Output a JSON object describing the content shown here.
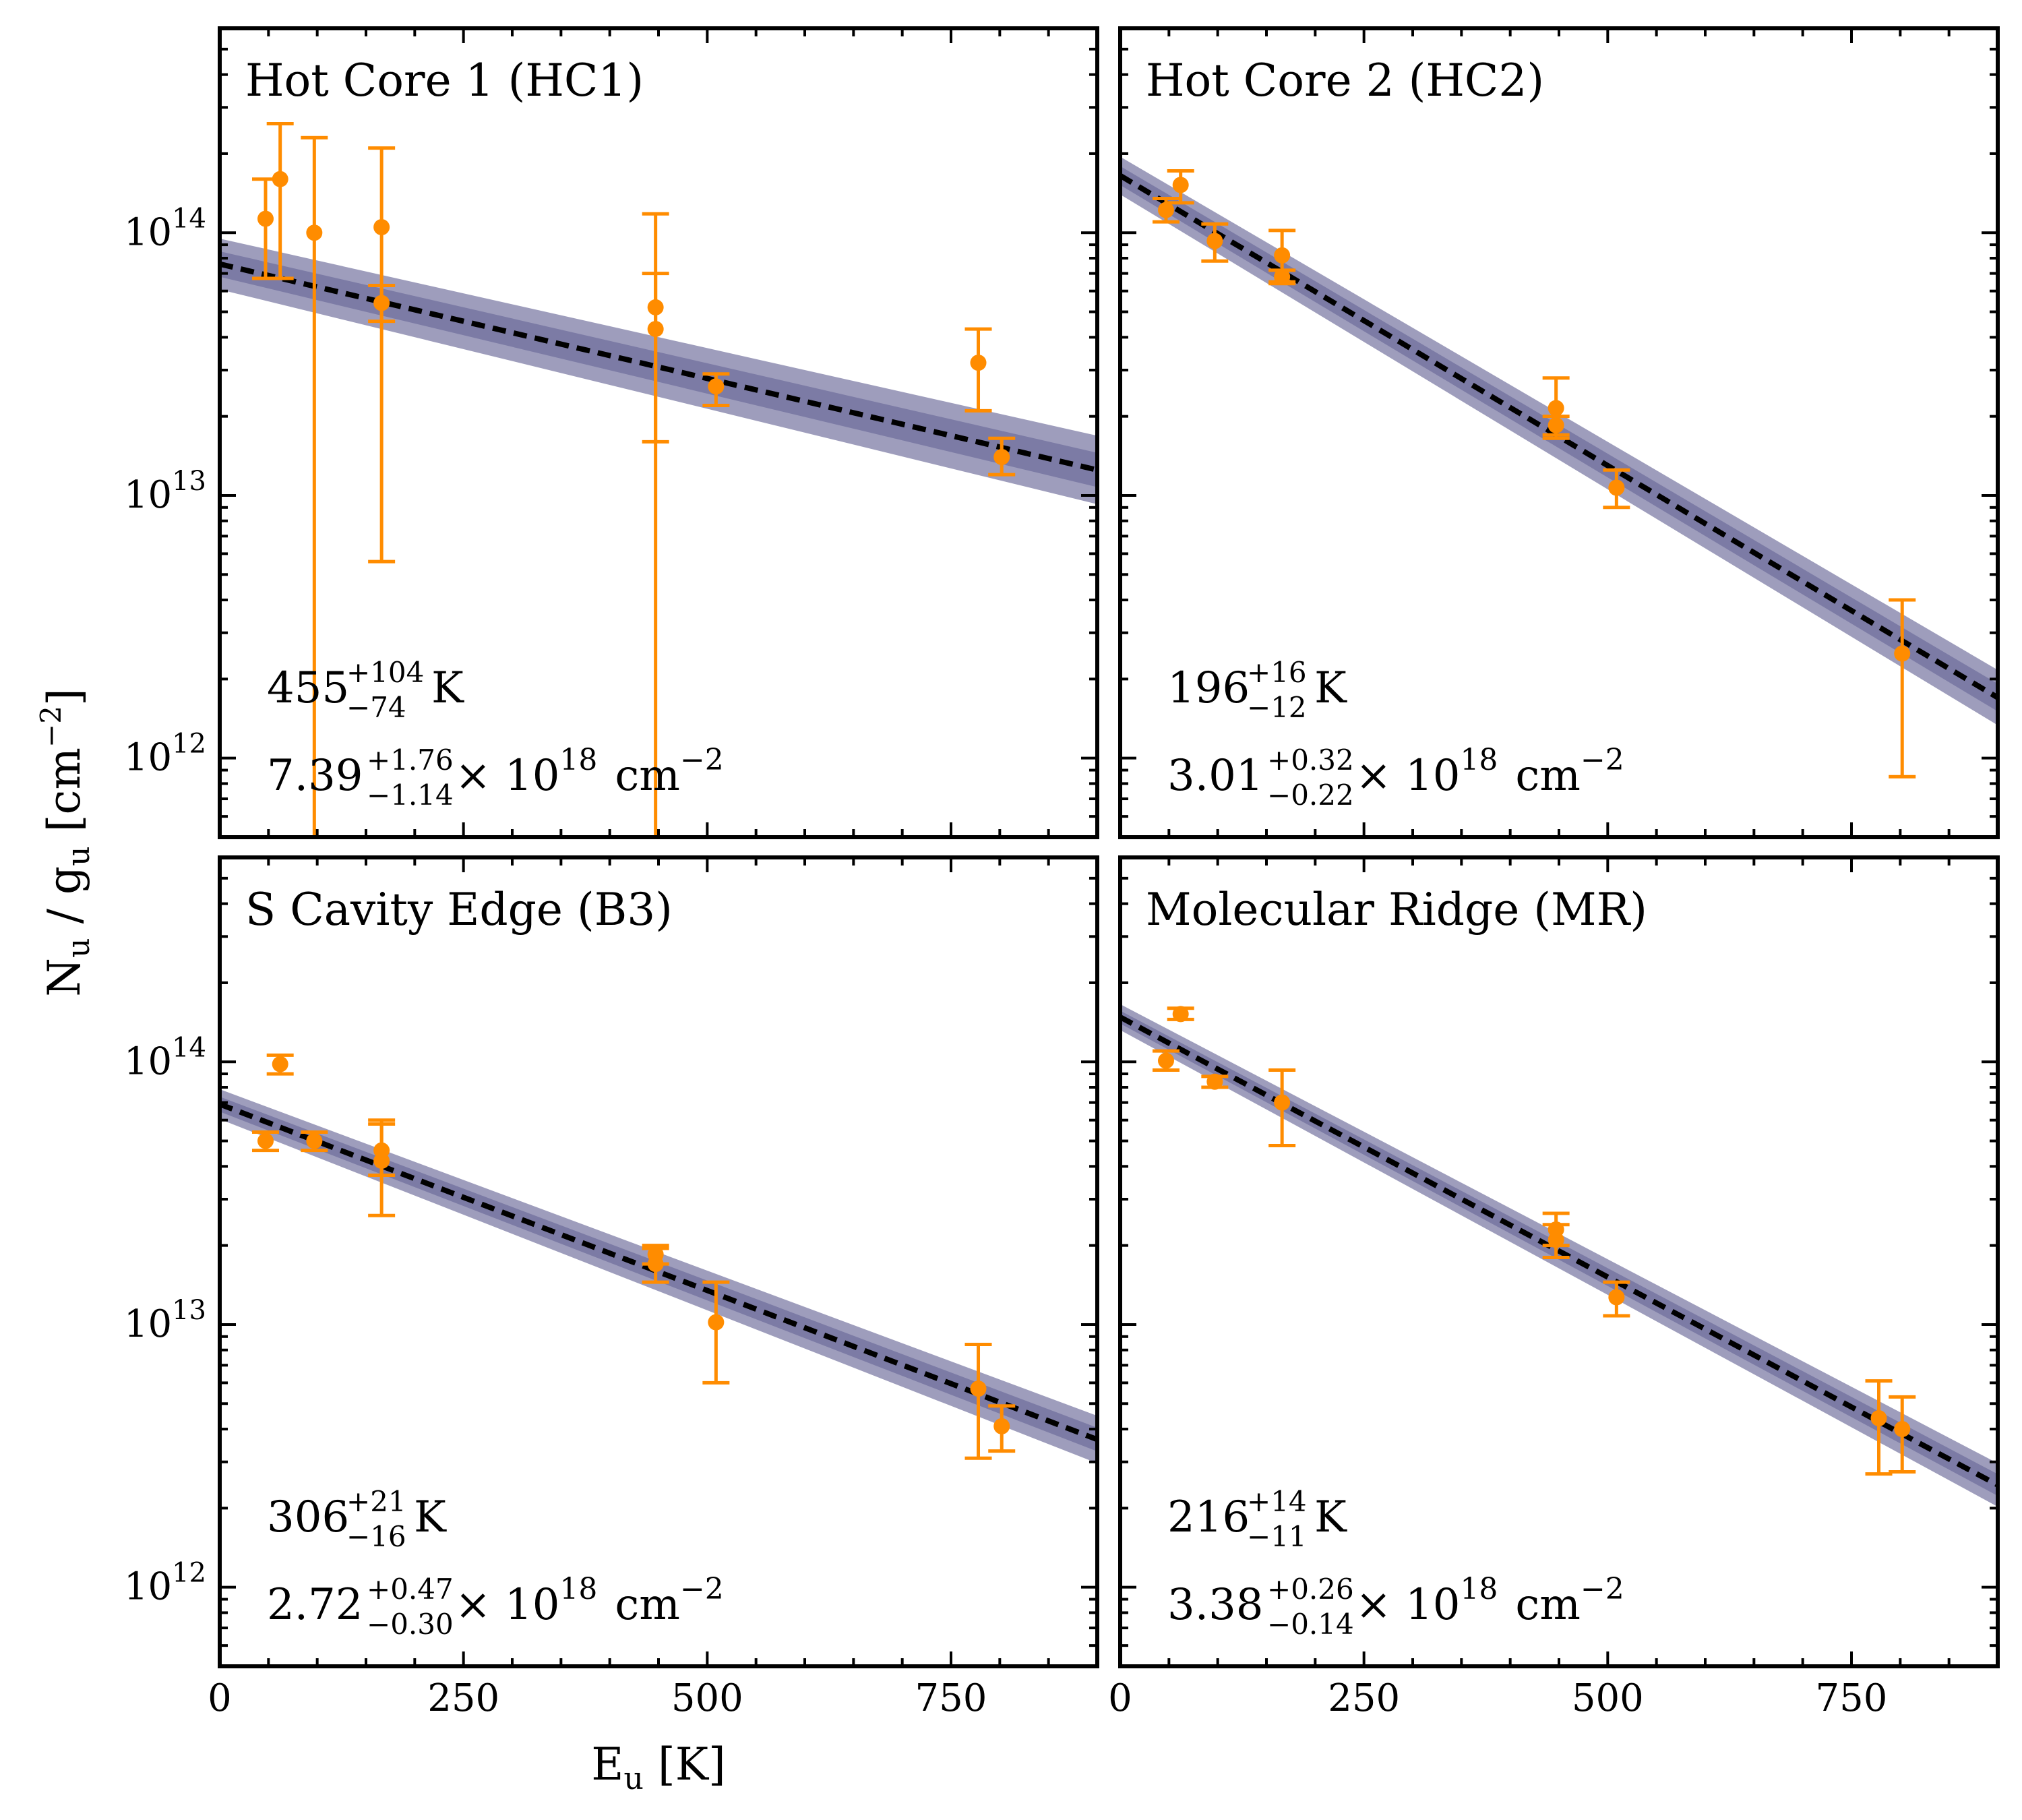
{
  "chart_data": {
    "type": "scatter",
    "xlabel": "E",
    "xlabel_sub": "u",
    "xlabel_unit": "[K]",
    "ylabel_parts": [
      "N",
      "u",
      " / g",
      "u",
      " [cm",
      "−2",
      "]"
    ],
    "xlim": [
      0,
      900
    ],
    "ylim": [
      500000000000.0,
      600000000000000.0
    ],
    "yscale": "log",
    "x_ticks": [
      0,
      250,
      500,
      750
    ],
    "x_tick_labels": [
      "0",
      "250",
      "500",
      "750"
    ],
    "y_ticks": [
      1000000000000.0,
      10000000000000.0,
      100000000000000.0
    ],
    "y_tick_labels": [
      {
        "base": "10",
        "exp": "12"
      },
      {
        "base": "10",
        "exp": "13"
      },
      {
        "base": "10",
        "exp": "14"
      }
    ],
    "colors": {
      "points": "#ff8c00",
      "fit": "#000000",
      "band": "#3d3b7a"
    },
    "panels": [
      {
        "title": "Hot Core 1 (HC1)",
        "temperature": {
          "value": "455",
          "plus": "+104",
          "minus": "−74",
          "unit": "K"
        },
        "column_density": {
          "value": "7.39",
          "plus": "+1.76",
          "minus": "−1.14",
          "times": "× 10",
          "exp": "18",
          "unit": "cm",
          "unit_exp": "−2"
        },
        "fit": {
          "y0": 76000000000000.0,
          "y900": 12500000000000.0
        },
        "band_factor": 1.25,
        "points": [
          {
            "x": 47,
            "y": 113000000000000.0,
            "lo": 67000000000000.0,
            "hi": 160000000000000.0
          },
          {
            "x": 62,
            "y": 160000000000000.0,
            "lo": 67000000000000.0,
            "hi": 260000000000000.0
          },
          {
            "x": 97,
            "y": 100000000000000.0,
            "lo": 500000000000.0,
            "hi": 230000000000000.0
          },
          {
            "x": 166,
            "y": 105000000000000.0,
            "lo": 5600000000000.0,
            "hi": 210000000000000.0
          },
          {
            "x": 166,
            "y": 54000000000000.0,
            "lo": 46000000000000.0,
            "hi": 63000000000000.0
          },
          {
            "x": 447,
            "y": 52000000000000.0,
            "lo": 16000000000000.0,
            "hi": 118000000000000.0
          },
          {
            "x": 447,
            "y": 43000000000000.0,
            "lo": 500000000000.0,
            "hi": 70000000000000.0
          },
          {
            "x": 509,
            "y": 26000000000000.0,
            "lo": 22000000000000.0,
            "hi": 29000000000000.0
          },
          {
            "x": 778,
            "y": 32000000000000.0,
            "lo": 21000000000000.0,
            "hi": 43000000000000.0
          },
          {
            "x": 802,
            "y": 14000000000000.0,
            "lo": 12000000000000.0,
            "hi": 16500000000000.0
          }
        ]
      },
      {
        "title": "Hot Core 2 (HC2)",
        "temperature": {
          "value": "196",
          "plus": "+16",
          "minus": "−12",
          "unit": "K"
        },
        "column_density": {
          "value": "3.01",
          "plus": "+0.32",
          "minus": "−0.22",
          "times": "× 10",
          "exp": "18",
          "unit": "cm",
          "unit_exp": "−2"
        },
        "fit": {
          "y0": 165000000000000.0,
          "y900": 1700000000000.0
        },
        "band_factor": 1.18,
        "points": [
          {
            "x": 47,
            "y": 122000000000000.0,
            "lo": 110000000000000.0,
            "hi": 135000000000000.0
          },
          {
            "x": 62,
            "y": 152000000000000.0,
            "lo": 130000000000000.0,
            "hi": 172000000000000.0
          },
          {
            "x": 97,
            "y": 93000000000000.0,
            "lo": 78000000000000.0,
            "hi": 108000000000000.0
          },
          {
            "x": 166,
            "y": 82000000000000.0,
            "lo": 65000000000000.0,
            "hi": 102000000000000.0
          },
          {
            "x": 166,
            "y": 68000000000000.0,
            "lo": 64000000000000.0,
            "hi": 72000000000000.0
          },
          {
            "x": 447,
            "y": 21500000000000.0,
            "lo": 16500000000000.0,
            "hi": 28000000000000.0
          },
          {
            "x": 447,
            "y": 18500000000000.0,
            "lo": 17000000000000.0,
            "hi": 20000000000000.0
          },
          {
            "x": 509,
            "y": 10700000000000.0,
            "lo": 9000000000000.0,
            "hi": 12500000000000.0
          },
          {
            "x": 802,
            "y": 2500000000000.0,
            "lo": 850000000000.0,
            "hi": 4000000000000.0
          }
        ]
      },
      {
        "title": "S Cavity Edge (B3)",
        "temperature": {
          "value": "306",
          "plus": "+21",
          "minus": "−16",
          "unit": "K"
        },
        "column_density": {
          "value": "2.72",
          "plus": "+0.47",
          "minus": "−0.30",
          "times": "× 10",
          "exp": "18",
          "unit": "cm",
          "unit_exp": "−2"
        },
        "fit": {
          "y0": 69000000000000.0,
          "y900": 3650000000000.0
        },
        "band_factor": 1.14,
        "points": [
          {
            "x": 47,
            "y": 50000000000000.0,
            "lo": 46000000000000.0,
            "hi": 54000000000000.0
          },
          {
            "x": 62,
            "y": 98000000000000.0,
            "lo": 90000000000000.0,
            "hi": 106000000000000.0
          },
          {
            "x": 97,
            "y": 50000000000000.0,
            "lo": 46000000000000.0,
            "hi": 54000000000000.0
          },
          {
            "x": 166,
            "y": 46000000000000.0,
            "lo": 37000000000000.0,
            "hi": 58000000000000.0
          },
          {
            "x": 166,
            "y": 42000000000000.0,
            "lo": 26000000000000.0,
            "hi": 60000000000000.0
          },
          {
            "x": 447,
            "y": 18500000000000.0,
            "lo": 17000000000000.0,
            "hi": 20000000000000.0
          },
          {
            "x": 447,
            "y": 17000000000000.0,
            "lo": 14500000000000.0,
            "hi": 19500000000000.0
          },
          {
            "x": 509,
            "y": 10200000000000.0,
            "lo": 6000000000000.0,
            "hi": 14500000000000.0
          },
          {
            "x": 778,
            "y": 5700000000000.0,
            "lo": 3100000000000.0,
            "hi": 8400000000000.0
          },
          {
            "x": 802,
            "y": 4100000000000.0,
            "lo": 3300000000000.0,
            "hi": 4900000000000.0
          }
        ]
      },
      {
        "title": "Molecular Ridge (MR)",
        "temperature": {
          "value": "216",
          "plus": "+14",
          "minus": "−11",
          "unit": "K"
        },
        "column_density": {
          "value": "3.38",
          "plus": "+0.26",
          "minus": "−0.14",
          "times": "× 10",
          "exp": "18",
          "unit": "cm",
          "unit_exp": "−2"
        },
        "fit": {
          "y0": 148000000000000.0,
          "y900": 2450000000000.0
        },
        "band_factor": 1.12,
        "points": [
          {
            "x": 47,
            "y": 101000000000000.0,
            "lo": 93000000000000.0,
            "hi": 110000000000000.0
          },
          {
            "x": 62,
            "y": 152000000000000.0,
            "lo": 145000000000000.0,
            "hi": 160000000000000.0
          },
          {
            "x": 97,
            "y": 84000000000000.0,
            "lo": 80000000000000.0,
            "hi": 88000000000000.0
          },
          {
            "x": 166,
            "y": 70000000000000.0,
            "lo": 48000000000000.0,
            "hi": 93000000000000.0
          },
          {
            "x": 447,
            "y": 23000000000000.0,
            "lo": 20000000000000.0,
            "hi": 26500000000000.0
          },
          {
            "x": 447,
            "y": 21000000000000.0,
            "lo": 18000000000000.0,
            "hi": 24000000000000.0
          },
          {
            "x": 509,
            "y": 12700000000000.0,
            "lo": 10800000000000.0,
            "hi": 14500000000000.0
          },
          {
            "x": 778,
            "y": 4400000000000.0,
            "lo": 2700000000000.0,
            "hi": 6100000000000.0
          },
          {
            "x": 802,
            "y": 4000000000000.0,
            "lo": 2750000000000.0,
            "hi": 5300000000000.0
          }
        ]
      }
    ]
  }
}
